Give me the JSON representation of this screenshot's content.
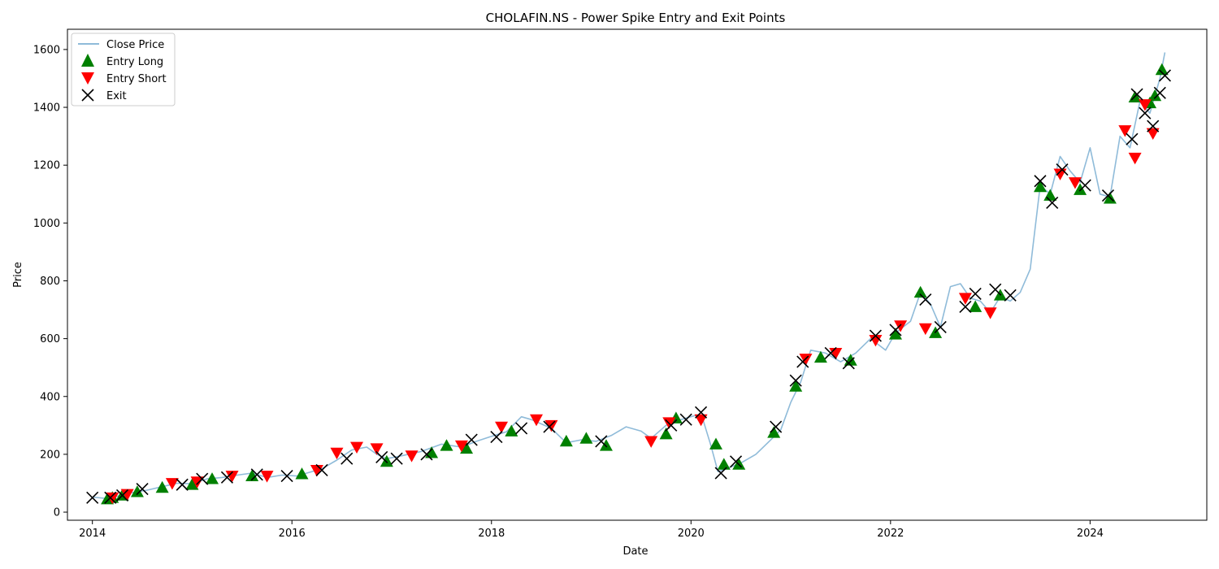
{
  "chart_data": {
    "type": "line",
    "title": "CHOLAFIN.NS - Power Spike Entry and Exit Points",
    "xlabel": "Date",
    "ylabel": "Price",
    "xlim": [
      2013.75,
      2025.17
    ],
    "ylim": [
      -28,
      1670
    ],
    "x_ticks": [
      2014,
      2016,
      2018,
      2020,
      2022,
      2024
    ],
    "y_ticks": [
      0,
      200,
      400,
      600,
      800,
      1000,
      1200,
      1400,
      1600
    ],
    "grid": false,
    "legend_position": "top-left",
    "legend": [
      "Close Price",
      "Entry Long",
      "Entry Short",
      "Exit"
    ],
    "colors": {
      "close_price": "#1f77b4",
      "entry_long": "#008000",
      "entry_short": "#ff0000",
      "exit": "#000000"
    },
    "series": [
      {
        "name": "Close Price",
        "x": [
          2014.0,
          2014.12,
          2014.25,
          2014.4,
          2014.55,
          2014.7,
          2014.85,
          2015.0,
          2015.15,
          2015.3,
          2015.45,
          2015.6,
          2015.75,
          2015.9,
          2016.05,
          2016.2,
          2016.3,
          2016.45,
          2016.6,
          2016.75,
          2016.85,
          2016.95,
          2017.1,
          2017.3,
          2017.5,
          2017.7,
          2017.85,
          2018.0,
          2018.15,
          2018.3,
          2018.4,
          2018.5,
          2018.6,
          2018.75,
          2018.9,
          2019.05,
          2019.2,
          2019.35,
          2019.5,
          2019.6,
          2019.75,
          2019.9,
          2020.05,
          2020.12,
          2020.2,
          2020.27,
          2020.35,
          2020.5,
          2020.65,
          2020.8,
          2020.9,
          2021.0,
          2021.1,
          2021.2,
          2021.35,
          2021.5,
          2021.65,
          2021.8,
          2021.95,
          2022.05,
          2022.2,
          2022.3,
          2022.4,
          2022.5,
          2022.6,
          2022.7,
          2022.8,
          2022.9,
          2023.0,
          2023.1,
          2023.2,
          2023.3,
          2023.4,
          2023.5,
          2023.6,
          2023.7,
          2023.8,
          2023.9,
          2024.0,
          2024.1,
          2024.2,
          2024.3,
          2024.4,
          2024.5,
          2024.6,
          2024.7,
          2024.75
        ],
        "values": [
          52,
          48,
          55,
          68,
          76,
          88,
          100,
          98,
          115,
          120,
          128,
          135,
          120,
          128,
          125,
          140,
          150,
          180,
          215,
          225,
          200,
          185,
          195,
          210,
          235,
          225,
          245,
          262,
          278,
          330,
          320,
          305,
          290,
          240,
          250,
          245,
          265,
          295,
          280,
          255,
          300,
          320,
          335,
          320,
          230,
          140,
          150,
          170,
          200,
          250,
          285,
          380,
          450,
          560,
          550,
          520,
          550,
          600,
          560,
          620,
          660,
          760,
          720,
          640,
          780,
          790,
          740,
          730,
          690,
          745,
          730,
          760,
          840,
          1130,
          1100,
          1230,
          1180,
          1140,
          1260,
          1100,
          1090,
          1300,
          1260,
          1420,
          1380,
          1500,
          1590
        ]
      }
    ],
    "entry_long": {
      "x": [
        2014.15,
        2014.2,
        2014.3,
        2014.45,
        2014.7,
        2015.0,
        2015.2,
        2015.6,
        2016.1,
        2016.95,
        2017.4,
        2017.55,
        2017.75,
        2018.2,
        2018.75,
        2018.95,
        2019.15,
        2019.75,
        2019.85,
        2020.25,
        2020.33,
        2020.48,
        2020.83,
        2021.05,
        2021.3,
        2021.6,
        2022.05,
        2022.3,
        2022.45,
        2022.85,
        2023.1,
        2023.5,
        2023.6,
        2023.9,
        2024.2,
        2024.45,
        2024.6,
        2024.65,
        2024.72
      ],
      "values": [
        45,
        50,
        58,
        70,
        85,
        95,
        115,
        125,
        132,
        175,
        205,
        230,
        220,
        280,
        245,
        255,
        230,
        270,
        325,
        235,
        165,
        165,
        275,
        435,
        535,
        525,
        615,
        760,
        620,
        710,
        750,
        1125,
        1095,
        1115,
        1085,
        1435,
        1415,
        1440,
        1530
      ]
    },
    "entry_short": {
      "x": [
        2014.2,
        2014.35,
        2014.8,
        2015.05,
        2015.4,
        2015.75,
        2016.25,
        2016.45,
        2016.65,
        2016.85,
        2017.2,
        2017.7,
        2018.1,
        2018.45,
        2018.6,
        2019.6,
        2019.78,
        2020.1,
        2021.15,
        2021.45,
        2021.85,
        2022.1,
        2022.35,
        2022.75,
        2023.0,
        2023.7,
        2023.85,
        2024.35,
        2024.45,
        2024.55,
        2024.63
      ],
      "values": [
        50,
        62,
        100,
        105,
        125,
        125,
        145,
        205,
        225,
        220,
        195,
        230,
        295,
        320,
        300,
        245,
        310,
        320,
        530,
        550,
        595,
        645,
        635,
        740,
        690,
        1170,
        1140,
        1320,
        1225,
        1410,
        1310
      ]
    },
    "exit": {
      "x": [
        2014.0,
        2014.18,
        2014.3,
        2014.5,
        2014.9,
        2015.1,
        2015.35,
        2015.65,
        2015.95,
        2016.3,
        2016.55,
        2016.9,
        2017.05,
        2017.35,
        2017.8,
        2018.05,
        2018.3,
        2018.58,
        2019.1,
        2019.8,
        2019.95,
        2020.1,
        2020.3,
        2020.45,
        2020.85,
        2021.05,
        2021.12,
        2021.4,
        2021.58,
        2021.85,
        2022.05,
        2022.35,
        2022.5,
        2022.75,
        2022.85,
        2023.05,
        2023.2,
        2023.5,
        2023.62,
        2023.72,
        2023.95,
        2024.18,
        2024.42,
        2024.47,
        2024.55,
        2024.63,
        2024.7,
        2024.75
      ],
      "values": [
        50,
        50,
        58,
        80,
        95,
        115,
        120,
        130,
        125,
        145,
        185,
        190,
        185,
        200,
        250,
        260,
        290,
        295,
        245,
        300,
        320,
        345,
        135,
        175,
        295,
        455,
        520,
        550,
        515,
        610,
        630,
        735,
        640,
        710,
        755,
        770,
        750,
        1145,
        1070,
        1185,
        1130,
        1095,
        1290,
        1445,
        1380,
        1335,
        1450,
        1510
      ]
    }
  }
}
